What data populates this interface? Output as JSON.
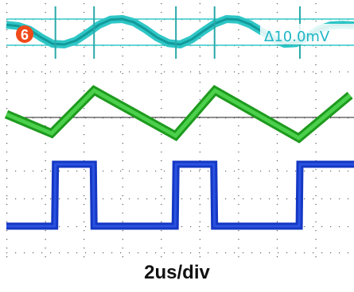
{
  "chart_data": {
    "type": "line",
    "timebase_label": "2us/div",
    "channel_badge": "6",
    "delta_readout": "Δ10.0mV",
    "grid": true,
    "divisions_x": 9,
    "series": [
      {
        "color": "#2fc6c6",
        "x": [
          0,
          0.3,
          0.6,
          0.9,
          1.2,
          1.5,
          1.8,
          2.1,
          2.4,
          2.7,
          3.0,
          3.3,
          3.6,
          3.9,
          4.2,
          4.5,
          4.8,
          5.1,
          5.4,
          5.7,
          6.0,
          6.3,
          6.6,
          6.9,
          7.2,
          7.5,
          7.8,
          8.1,
          8.4,
          8.7,
          9.0
        ],
        "y": [
          0.55,
          0.45,
          0.15,
          -0.45,
          -0.95,
          -1.0,
          -0.7,
          -0.1,
          0.55,
          0.95,
          1.0,
          0.75,
          0.2,
          -0.45,
          -0.9,
          -1.0,
          -0.6,
          0.05,
          0.65,
          1.0,
          0.95,
          0.6,
          0.05,
          -0.55,
          -0.95,
          -0.9,
          -0.4,
          0.2,
          0.5,
          0.55,
          0.5
        ]
      },
      {
        "color": "#2fb52f",
        "x": [
          0,
          1.17,
          2.27,
          4.38,
          5.4,
          7.57,
          8.9
        ],
        "y": [
          0,
          -0.8,
          1.0,
          -0.9,
          1.0,
          -1.0,
          0.8
        ]
      },
      {
        "color": "#1538c4",
        "x": [
          0,
          1.25,
          1.27,
          2.25,
          2.27,
          4.37,
          4.39,
          5.37,
          5.39,
          7.58,
          7.6,
          9.0
        ],
        "y": [
          0,
          0,
          1,
          1,
          0,
          0,
          1,
          1,
          0,
          0,
          1,
          1
        ]
      }
    ]
  }
}
